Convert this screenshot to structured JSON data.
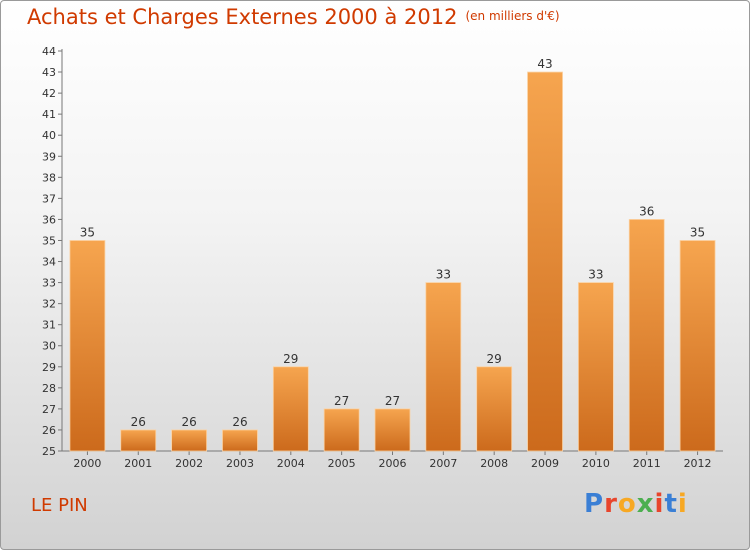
{
  "title": "Achats et Charges Externes 2000 à 2012",
  "unit": "(en milliers d'€)",
  "commune": "LE PIN",
  "logo": {
    "text": "Proxiti",
    "colors": [
      "#3a7fd5",
      "#e8452c",
      "#f7a823",
      "#4caf50",
      "#e8452c",
      "#3a7fd5",
      "#f7a823"
    ]
  },
  "chart_data": {
    "type": "bar",
    "title": "Achats et Charges Externes 2000 à 2012",
    "subtitle": "(en milliers d'€)",
    "xlabel": "",
    "ylabel": "",
    "categories": [
      "2000",
      "2001",
      "2002",
      "2003",
      "2004",
      "2005",
      "2006",
      "2007",
      "2008",
      "2009",
      "2010",
      "2011",
      "2012"
    ],
    "values": [
      35,
      26,
      26,
      26,
      29,
      27,
      27,
      33,
      29,
      43,
      33,
      36,
      35
    ],
    "ylim": [
      25,
      44
    ],
    "yticks": [
      25,
      26,
      27,
      28,
      29,
      30,
      31,
      32,
      33,
      34,
      35,
      36,
      37,
      38,
      39,
      40,
      41,
      42,
      43,
      44
    ],
    "grid": false,
    "bar_color_top": "#f6a54f",
    "bar_color_bottom": "#cc6a1c"
  }
}
